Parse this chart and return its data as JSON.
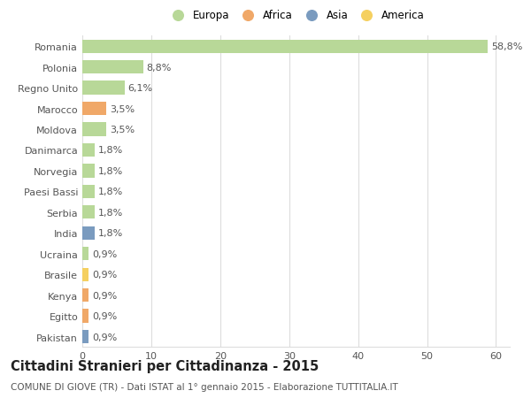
{
  "categories": [
    "Pakistan",
    "Egitto",
    "Kenya",
    "Brasile",
    "Ucraina",
    "India",
    "Serbia",
    "Paesi Bassi",
    "Norvegia",
    "Danimarca",
    "Moldova",
    "Marocco",
    "Regno Unito",
    "Polonia",
    "Romania"
  ],
  "values": [
    0.9,
    0.9,
    0.9,
    0.9,
    0.9,
    1.8,
    1.8,
    1.8,
    1.8,
    1.8,
    3.5,
    3.5,
    6.1,
    8.8,
    58.8
  ],
  "labels": [
    "0,9%",
    "0,9%",
    "0,9%",
    "0,9%",
    "0,9%",
    "1,8%",
    "1,8%",
    "1,8%",
    "1,8%",
    "1,8%",
    "3,5%",
    "3,5%",
    "6,1%",
    "8,8%",
    "58,8%"
  ],
  "colors": [
    "#7a9bbf",
    "#f0a868",
    "#f0a868",
    "#f5d060",
    "#b8d898",
    "#7a9bbf",
    "#b8d898",
    "#b8d898",
    "#b8d898",
    "#b8d898",
    "#b8d898",
    "#f0a868",
    "#b8d898",
    "#b8d898",
    "#b8d898"
  ],
  "legend_labels": [
    "Europa",
    "Africa",
    "Asia",
    "America"
  ],
  "legend_colors": [
    "#b8d898",
    "#f0a868",
    "#7a9bbf",
    "#f5d060"
  ],
  "title": "Cittadini Stranieri per Cittadinanza - 2015",
  "subtitle": "COMUNE DI GIOVE (TR) - Dati ISTAT al 1° gennaio 2015 - Elaborazione TUTTITALIA.IT",
  "xlim": [
    0,
    62
  ],
  "xticks": [
    0,
    10,
    20,
    30,
    40,
    50,
    60
  ],
  "background_color": "#ffffff",
  "grid_color": "#dddddd",
  "bar_height": 0.65,
  "title_fontsize": 10.5,
  "subtitle_fontsize": 7.5,
  "label_fontsize": 8,
  "tick_fontsize": 8
}
